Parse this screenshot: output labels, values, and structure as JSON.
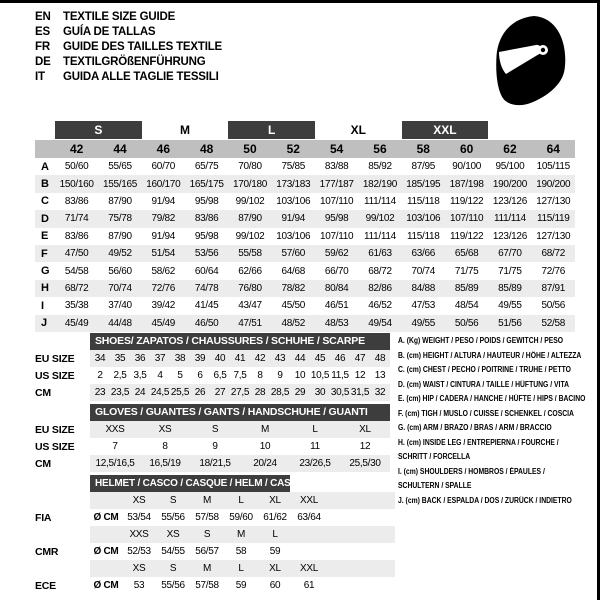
{
  "colors": {
    "dark": "#3d3d3d",
    "header_gray": "#bfbfbf",
    "stripe": "#ececec",
    "border": "#000000"
  },
  "header": {
    "languages": [
      {
        "code": "EN",
        "text": "TEXTILE SIZE GUIDE"
      },
      {
        "code": "ES",
        "text": "GUÍA DE TALLAS"
      },
      {
        "code": "FR",
        "text": "GUIDE DES TAILLES TEXTILE"
      },
      {
        "code": "DE",
        "text": "TEXTILGRÖßENFÜHRUNG"
      },
      {
        "code": "IT",
        "text": "GUIDA ALLE TAGLIE TESSILI"
      }
    ],
    "icon": "helmet-icon"
  },
  "main_table": {
    "group_headers": [
      {
        "label": "S",
        "dark": true
      },
      {
        "label": "M",
        "dark": false
      },
      {
        "label": "L",
        "dark": true
      },
      {
        "label": "XL",
        "dark": false
      },
      {
        "label": "XXL",
        "dark": true
      }
    ],
    "sizes": [
      "42",
      "44",
      "46",
      "48",
      "50",
      "52",
      "54",
      "56",
      "58",
      "60",
      "62",
      "64"
    ],
    "rows": [
      {
        "label": "A",
        "values": [
          "50/60",
          "55/65",
          "60/70",
          "65/75",
          "70/80",
          "75/85",
          "83/88",
          "85/92",
          "87/95",
          "90/100",
          "95/100",
          "105/115"
        ]
      },
      {
        "label": "B",
        "values": [
          "150/160",
          "155/165",
          "160/170",
          "165/175",
          "170/180",
          "173/183",
          "177/187",
          "182/190",
          "185/195",
          "187/198",
          "190/200",
          "190/200"
        ]
      },
      {
        "label": "C",
        "values": [
          "83/86",
          "87/90",
          "91/94",
          "95/98",
          "99/102",
          "103/106",
          "107/110",
          "111/114",
          "115/118",
          "119/122",
          "123/126",
          "127/130"
        ]
      },
      {
        "label": "D",
        "values": [
          "71/74",
          "75/78",
          "79/82",
          "83/86",
          "87/90",
          "91/94",
          "95/98",
          "99/102",
          "103/106",
          "107/110",
          "111/114",
          "115/119"
        ]
      },
      {
        "label": "E",
        "values": [
          "83/86",
          "87/90",
          "91/94",
          "95/98",
          "99/102",
          "103/106",
          "107/110",
          "111/114",
          "115/118",
          "119/122",
          "123/126",
          "127/130"
        ]
      },
      {
        "label": "F",
        "values": [
          "47/50",
          "49/52",
          "51/54",
          "53/56",
          "55/58",
          "57/60",
          "59/62",
          "61/63",
          "63/66",
          "65/68",
          "67/70",
          "68/72"
        ]
      },
      {
        "label": "G",
        "values": [
          "54/58",
          "56/60",
          "58/62",
          "60/64",
          "62/66",
          "64/68",
          "66/70",
          "68/72",
          "70/74",
          "71/75",
          "71/75",
          "72/76"
        ]
      },
      {
        "label": "H",
        "values": [
          "68/72",
          "70/74",
          "72/76",
          "74/78",
          "76/80",
          "78/82",
          "80/84",
          "82/86",
          "84/88",
          "85/89",
          "85/89",
          "87/91"
        ]
      },
      {
        "label": "I",
        "values": [
          "35/38",
          "37/40",
          "39/42",
          "41/45",
          "43/47",
          "45/50",
          "46/51",
          "46/52",
          "47/53",
          "48/54",
          "49/55",
          "50/56"
        ]
      },
      {
        "label": "J",
        "values": [
          "45/49",
          "44/48",
          "45/49",
          "46/50",
          "47/51",
          "48/52",
          "48/53",
          "49/54",
          "49/55",
          "50/56",
          "51/56",
          "52/58"
        ]
      }
    ]
  },
  "shoes": {
    "title": "SHOES/ ZAPATOS / CHAUSSURES / SCHUHE / SCARPE",
    "rows": [
      {
        "label": "EU SIZE",
        "values": [
          "34",
          "35",
          "36",
          "37",
          "38",
          "39",
          "40",
          "41",
          "42",
          "43",
          "44",
          "45",
          "46",
          "47",
          "48"
        ]
      },
      {
        "label": "US SIZE",
        "values": [
          "2",
          "2,5",
          "3,5",
          "4",
          "5",
          "6",
          "6,5",
          "7,5",
          "8",
          "9",
          "10",
          "10,5",
          "11,5",
          "12",
          "13"
        ]
      },
      {
        "label": "CM",
        "values": [
          "23",
          "23,5",
          "24",
          "24,5",
          "25,5",
          "26",
          "27",
          "27,5",
          "28",
          "28,5",
          "29",
          "30",
          "30,5",
          "31,5",
          "32"
        ]
      }
    ]
  },
  "gloves": {
    "title": "GLOVES / GUANTES / GANTS / HANDSCHUHE / GUANTI",
    "rows": [
      {
        "label": "EU SIZE",
        "values": [
          "XXS",
          "XS",
          "S",
          "M",
          "L",
          "XL"
        ]
      },
      {
        "label": "US SIZE",
        "values": [
          "7",
          "8",
          "9",
          "10",
          "11",
          "12"
        ]
      },
      {
        "label": "CM",
        "values": [
          "12,5/16,5",
          "16,5/19",
          "18/21,5",
          "20/24",
          "23/26,5",
          "25,5/30"
        ]
      }
    ]
  },
  "helmet": {
    "title": "HELMET / CASCO / CASQUE / HELM / CASCO",
    "groups": [
      {
        "label": "FIA",
        "prefix": "Ø CM",
        "sizes": [
          "XS",
          "S",
          "M",
          "L",
          "XL",
          "XXL"
        ],
        "values": [
          "53/54",
          "55/56",
          "57/58",
          "59/60",
          "61/62",
          "63/64"
        ]
      },
      {
        "label": "CMR",
        "prefix": "Ø CM",
        "sizes": [
          "XXS",
          "XS",
          "S",
          "M",
          "L",
          ""
        ],
        "values": [
          "52/53",
          "54/55",
          "56/57",
          "58",
          "59",
          ""
        ]
      },
      {
        "label": "ECE",
        "prefix": "Ø CM",
        "sizes": [
          "XS",
          "S",
          "M",
          "L",
          "XL",
          "XXL"
        ],
        "values": [
          "53",
          "55/56",
          "57/58",
          "59",
          "60",
          "61"
        ]
      }
    ]
  },
  "legend": {
    "lines": [
      "A. (Kg) WEIGHT / PESO / POIDS / GEWITCH / PESO",
      "B. (cm) HEIGHT / ALTURA / HAUTEUR / HÖHE / ALTEZZA",
      "C. (cm) CHEST / PECHO / POITRINE / TRUHE / PETTO",
      "D. (cm) WAIST / CINTURA / TAILLE / HÜFTUNG / VITA",
      "E. (cm) HIP / CADERA / HANCHE / HÜFTE / HIPS / BACINO",
      "F. (cm) TIGH / MUSLO / CUISSE / SCHENKEL / COSCIA",
      "G. (cm) ARM / BRAZO / BRAS / ARM / BRACCIO",
      "H. (cm) INSIDE LEG / ENTREPIERNA / FOURCHE /",
      "SCHRITT / FORCELLA",
      "I. (cm) SHOULDERS / HOMBROS / ÉPAULES /",
      "SCHULTERN / SPALLE",
      "J. (cm) BACK / ESPALDA / DOS / ZURÜCK / INDIETRO"
    ]
  }
}
